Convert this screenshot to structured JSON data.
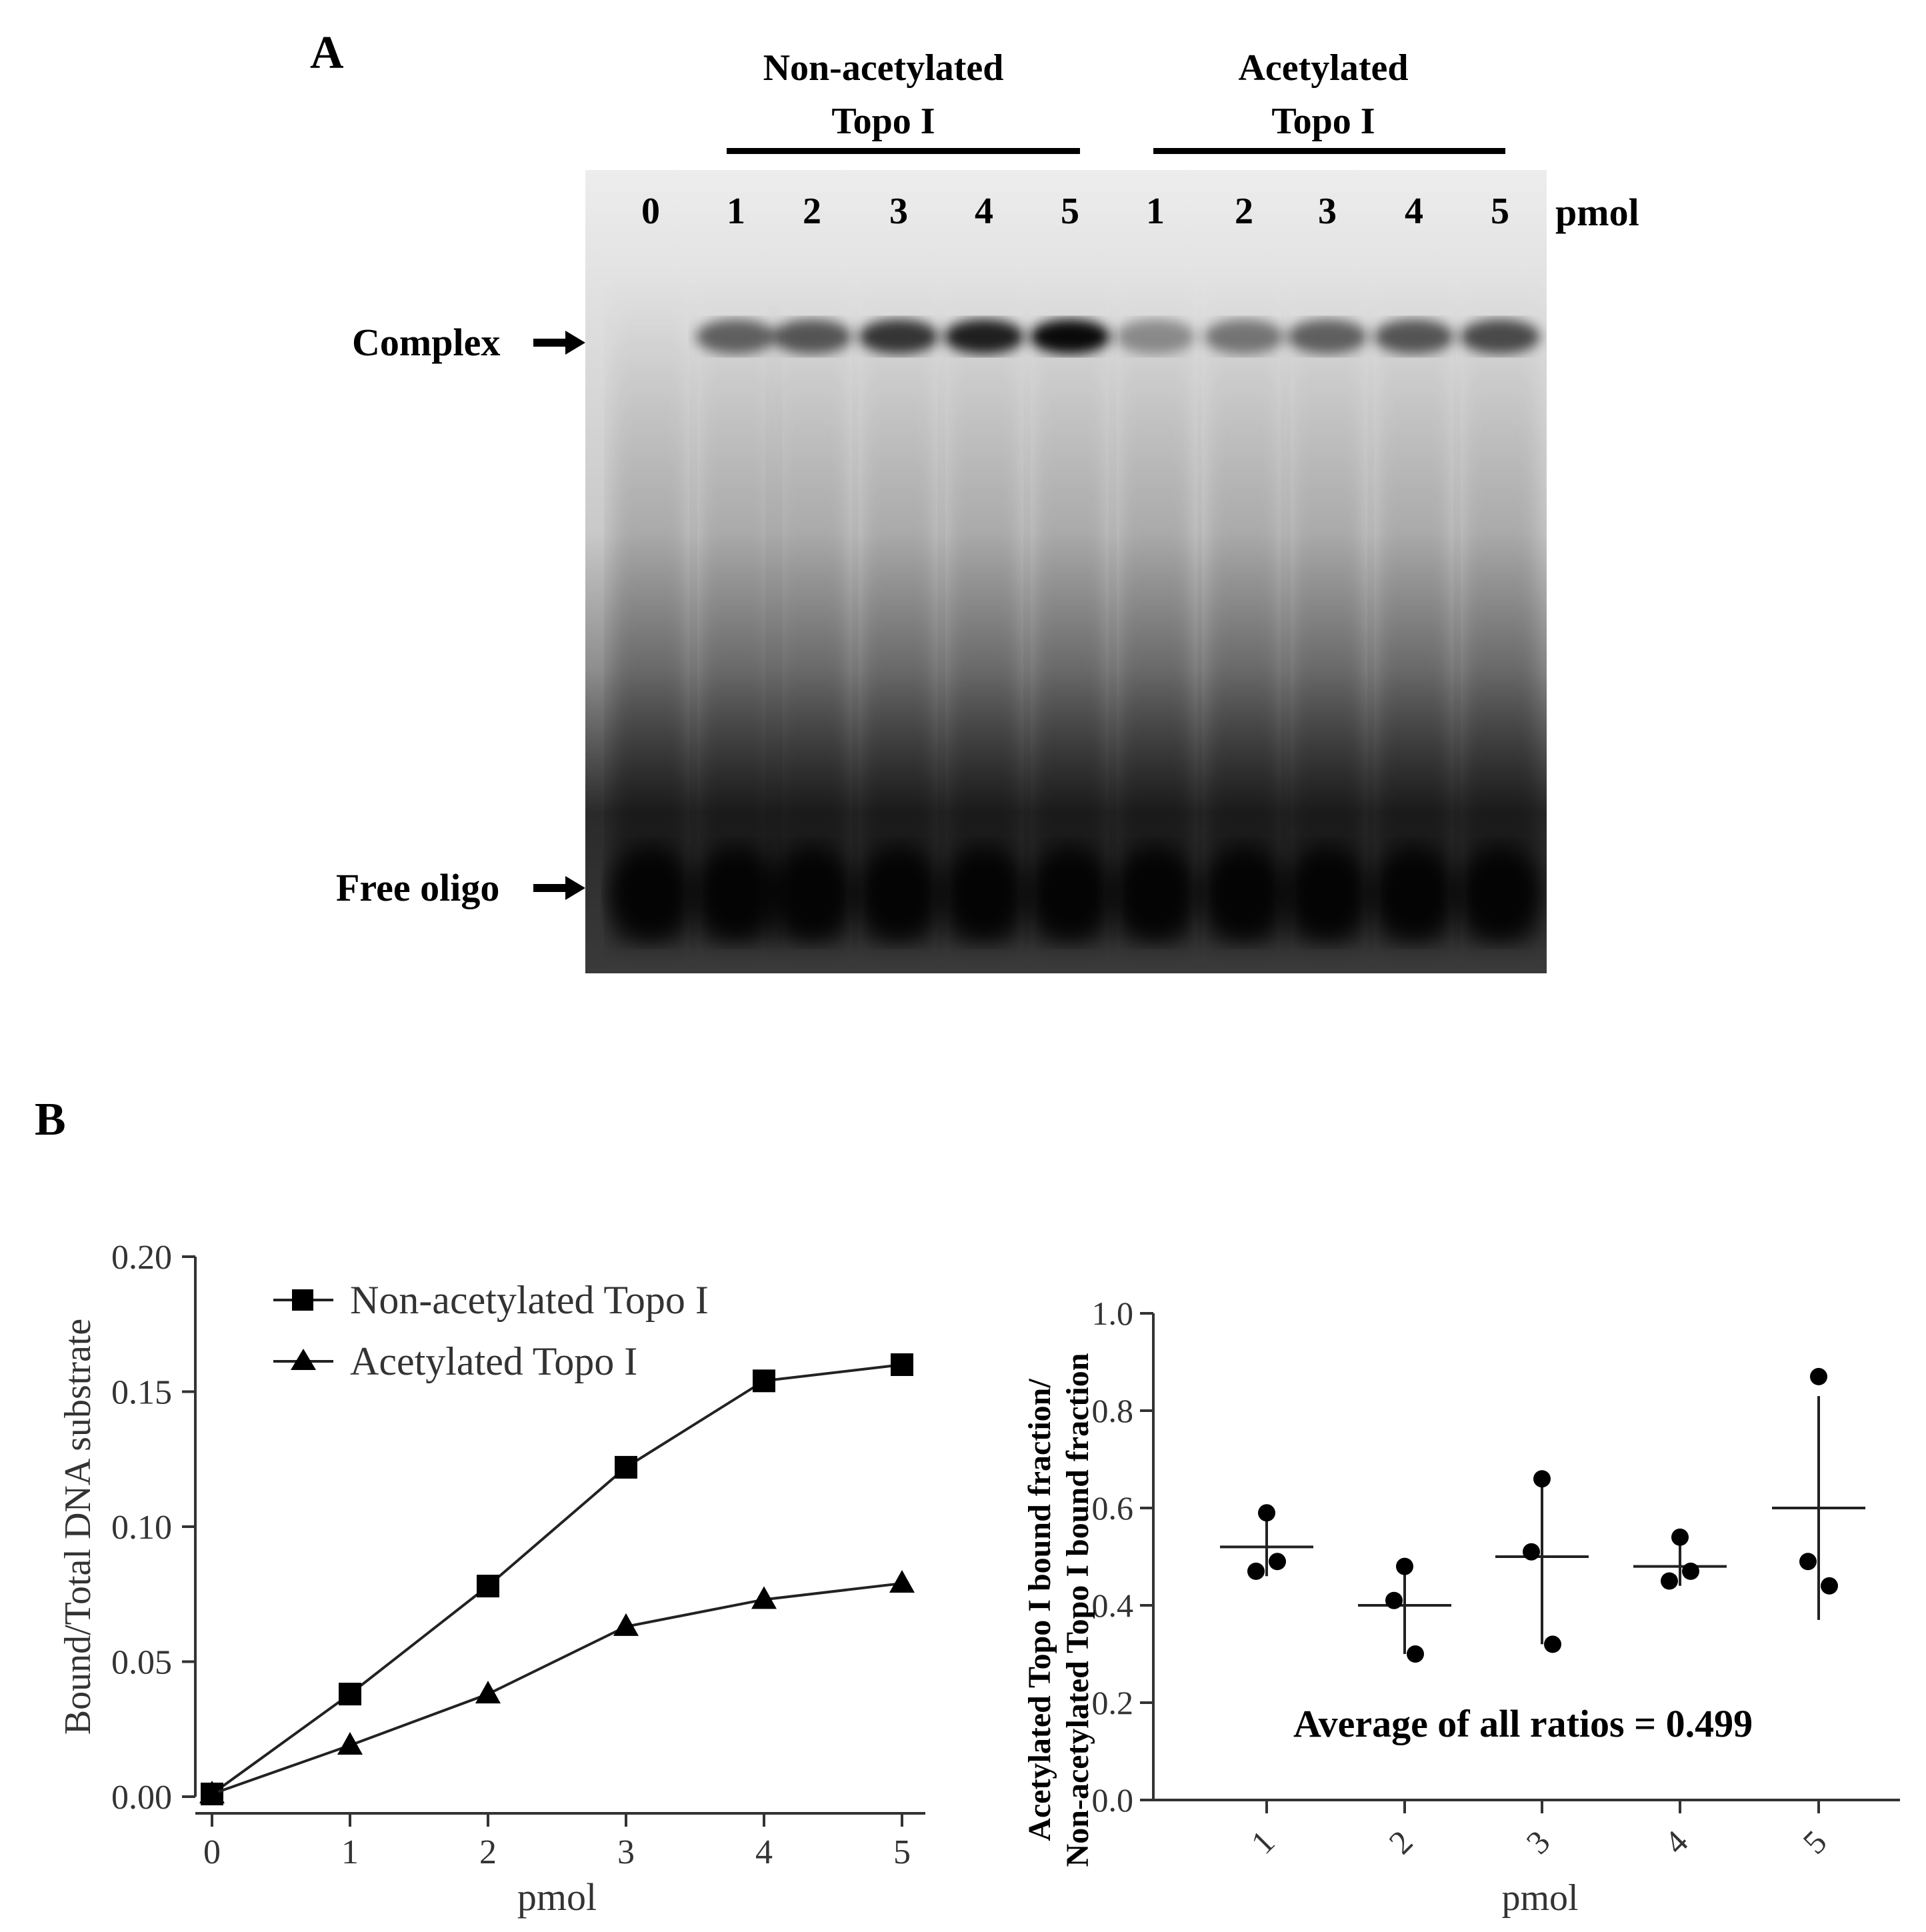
{
  "panel_a": {
    "letter": "A",
    "groups": [
      {
        "label_line1": "Non-acetylated",
        "label_line2": "Topo I"
      },
      {
        "label_line1": "Acetylated",
        "label_line2": "Topo I"
      }
    ],
    "lanes": [
      "0",
      "1",
      "2",
      "3",
      "4",
      "5",
      "1",
      "2",
      "3",
      "4",
      "5"
    ],
    "unit": "pmol",
    "band_labels": {
      "complex": "Complex",
      "free": "Free oligo"
    }
  },
  "panel_b": {
    "letter": "B",
    "average_text": "Average of all ratios = 0.499"
  },
  "chart_data": [
    {
      "type": "line",
      "xlabel": "pmol",
      "ylabel": "Bound/Total DNA substrate",
      "x": [
        0,
        1,
        2,
        3,
        4,
        5
      ],
      "xlim": [
        0,
        5
      ],
      "ylim": [
        0,
        0.2
      ],
      "yticks": [
        "0.00",
        "0.05",
        "0.10",
        "0.15",
        "0.20"
      ],
      "xticks": [
        "0",
        "1",
        "2",
        "3",
        "4",
        "5"
      ],
      "legend_position": "top-left",
      "series": [
        {
          "name": "Non-acetylated Topo I",
          "marker": "square",
          "values": [
            0.001,
            0.038,
            0.078,
            0.122,
            0.154,
            0.16
          ]
        },
        {
          "name": "Acetylated Topo I",
          "marker": "triangle",
          "values": [
            0.001,
            0.019,
            0.038,
            0.063,
            0.073,
            0.079
          ]
        }
      ]
    },
    {
      "type": "scatter",
      "xlabel": "pmol",
      "ylabel_line1": "Acetylated Topo I bound fraction/",
      "ylabel_line2": "Non-acetylated Topo I bound fraction",
      "categories": [
        "1",
        "2",
        "3",
        "4",
        "5"
      ],
      "ylim": [
        0,
        1.0
      ],
      "yticks": [
        "0.0",
        "0.2",
        "0.4",
        "0.6",
        "0.8",
        "1.0"
      ],
      "points": [
        [
          0.59,
          0.47,
          0.49
        ],
        [
          0.48,
          0.41,
          0.3
        ],
        [
          0.66,
          0.51,
          0.32
        ],
        [
          0.54,
          0.45,
          0.47
        ],
        [
          0.87,
          0.49,
          0.44
        ]
      ],
      "means": [
        0.52,
        0.4,
        0.5,
        0.48,
        0.6
      ],
      "error_low": [
        0.46,
        0.3,
        0.32,
        0.44,
        0.37
      ],
      "error_high": [
        0.59,
        0.48,
        0.66,
        0.53,
        0.83
      ]
    }
  ]
}
